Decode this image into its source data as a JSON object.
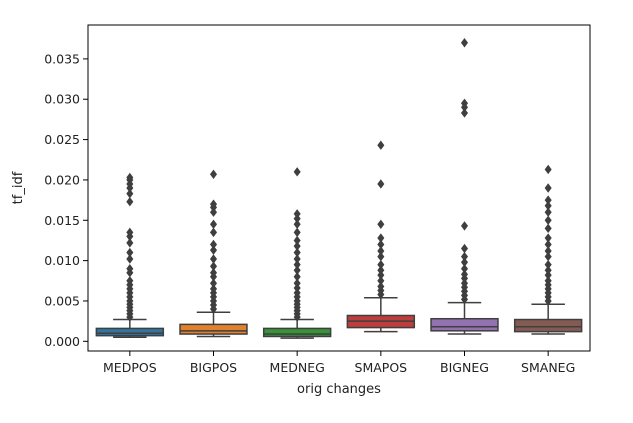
{
  "chart_data": {
    "type": "box",
    "xlabel": "orig changes",
    "ylabel": "tf_idf",
    "ylim": [
      -0.0012,
      0.0392
    ],
    "yticks": [
      0.0,
      0.005,
      0.01,
      0.015,
      0.02,
      0.025,
      0.03,
      0.035
    ],
    "ytick_labels": [
      "0.000",
      "0.005",
      "0.010",
      "0.015",
      "0.020",
      "0.025",
      "0.030",
      "0.035"
    ],
    "categories": [
      "MEDPOS",
      "BIGPOS",
      "MEDNEG",
      "SMAPOS",
      "BIGNEG",
      "SMANEG"
    ],
    "colors": [
      "#3274a1",
      "#e1812c",
      "#3a923a",
      "#c03d3e",
      "#9372b2",
      "#845b53"
    ],
    "boxes": [
      {
        "min": 0.0005,
        "q1": 0.0007,
        "median": 0.001,
        "q3": 0.0016,
        "max": 0.0027,
        "outliers": [
          0.003,
          0.0034,
          0.0038,
          0.0042,
          0.0046,
          0.005,
          0.0055,
          0.006,
          0.0065,
          0.007,
          0.0075,
          0.0085,
          0.009,
          0.0102,
          0.011,
          0.0122,
          0.013,
          0.0135,
          0.0173,
          0.0183,
          0.019,
          0.0195,
          0.02,
          0.0203
        ]
      },
      {
        "min": 0.0006,
        "q1": 0.0009,
        "median": 0.0013,
        "q3": 0.0021,
        "max": 0.0036,
        "outliers": [
          0.004,
          0.0045,
          0.005,
          0.0055,
          0.006,
          0.0065,
          0.0072,
          0.008,
          0.0085,
          0.0093,
          0.0102,
          0.0113,
          0.012,
          0.0135,
          0.0145,
          0.016,
          0.0166,
          0.017,
          0.0207
        ]
      },
      {
        "min": 0.0004,
        "q1": 0.0006,
        "median": 0.0009,
        "q3": 0.0016,
        "max": 0.0027,
        "outliers": [
          0.003,
          0.0034,
          0.0038,
          0.0042,
          0.0046,
          0.005,
          0.0055,
          0.006,
          0.0066,
          0.0072,
          0.008,
          0.0088,
          0.0095,
          0.0102,
          0.011,
          0.0118,
          0.0125,
          0.0135,
          0.0145,
          0.0152,
          0.0158,
          0.021
        ]
      },
      {
        "min": 0.0012,
        "q1": 0.0017,
        "median": 0.0025,
        "q3": 0.0032,
        "max": 0.0054,
        "outliers": [
          0.0058,
          0.0063,
          0.0068,
          0.0075,
          0.0082,
          0.0088,
          0.0095,
          0.0105,
          0.0112,
          0.012,
          0.0128,
          0.0145,
          0.0195,
          0.0243
        ]
      },
      {
        "min": 0.0009,
        "q1": 0.0013,
        "median": 0.0018,
        "q3": 0.0028,
        "max": 0.0048,
        "outliers": [
          0.0052,
          0.0057,
          0.0062,
          0.0067,
          0.0072,
          0.0078,
          0.0083,
          0.009,
          0.0098,
          0.0105,
          0.0115,
          0.0143,
          0.0283,
          0.029,
          0.0295,
          0.037
        ]
      },
      {
        "min": 0.0009,
        "q1": 0.0012,
        "median": 0.0018,
        "q3": 0.0027,
        "max": 0.0046,
        "outliers": [
          0.005,
          0.0055,
          0.006,
          0.0065,
          0.007,
          0.0075,
          0.0082,
          0.0088,
          0.0095,
          0.0105,
          0.0112,
          0.012,
          0.0128,
          0.014,
          0.015,
          0.016,
          0.0168,
          0.0175,
          0.019,
          0.0213
        ]
      }
    ],
    "grid": false,
    "legend": "none"
  }
}
